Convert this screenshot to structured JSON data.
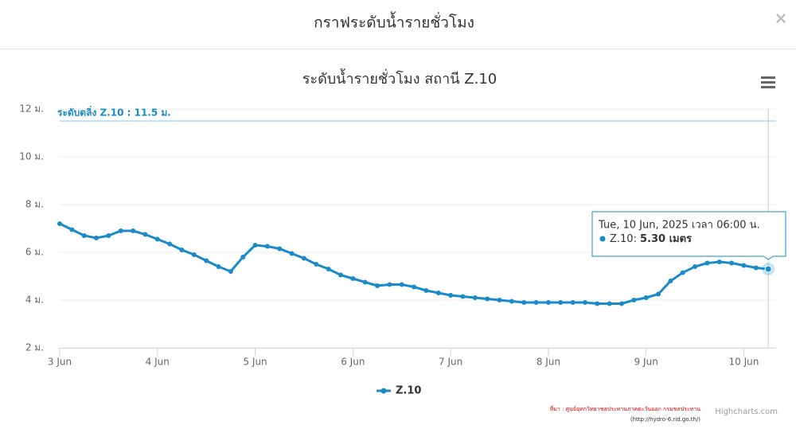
{
  "modal": {
    "title": "กราฟระดับน้ำรายชั่วโมง",
    "close": "×"
  },
  "chart_data": {
    "type": "line",
    "title": "ระดับน้ำรายชั่วโมง สถานี Z.10",
    "x": [
      0,
      0.125,
      0.25,
      0.375,
      0.5,
      0.625,
      0.75,
      0.875,
      1,
      1.125,
      1.25,
      1.375,
      1.5,
      1.625,
      1.75,
      1.875,
      2,
      2.125,
      2.25,
      2.375,
      2.5,
      2.625,
      2.75,
      2.875,
      3,
      3.125,
      3.25,
      3.375,
      3.5,
      3.625,
      3.75,
      3.875,
      4,
      4.125,
      4.25,
      4.375,
      4.5,
      4.625,
      4.75,
      4.875,
      5,
      5.125,
      5.25,
      5.375,
      5.5,
      5.625,
      5.75,
      5.875,
      6,
      6.125,
      6.25,
      6.375,
      6.5,
      6.625,
      6.75,
      6.875,
      7,
      7.125,
      7.25
    ],
    "series": [
      {
        "name": "Z.10",
        "color": "#1a8bc8",
        "values": [
          7.2,
          6.95,
          6.7,
          6.6,
          6.7,
          6.9,
          6.9,
          6.75,
          6.55,
          6.35,
          6.1,
          5.9,
          5.65,
          5.4,
          5.2,
          5.8,
          6.3,
          6.25,
          6.15,
          5.95,
          5.75,
          5.5,
          5.3,
          5.05,
          4.9,
          4.75,
          4.6,
          4.65,
          4.65,
          4.55,
          4.4,
          4.3,
          4.2,
          4.15,
          4.1,
          4.05,
          4.0,
          3.95,
          3.9,
          3.9,
          3.9,
          3.9,
          3.9,
          3.9,
          3.85,
          3.85,
          3.85,
          4.0,
          4.1,
          4.25,
          4.8,
          5.15,
          5.4,
          5.55,
          5.6,
          5.55,
          5.45,
          5.35,
          5.3
        ]
      }
    ],
    "xlim": [
      0,
      7.33
    ],
    "xticks": [
      {
        "value": 0,
        "label": "3 Jun"
      },
      {
        "value": 1,
        "label": "4 Jun"
      },
      {
        "value": 2,
        "label": "5 Jun"
      },
      {
        "value": 3,
        "label": "6 Jun"
      },
      {
        "value": 4,
        "label": "7 Jun"
      },
      {
        "value": 5,
        "label": "8 Jun"
      },
      {
        "value": 6,
        "label": "9 Jun"
      },
      {
        "value": 7,
        "label": "10 Jun"
      }
    ],
    "ylim": [
      2,
      12
    ],
    "yticks": [
      {
        "value": 2,
        "label": "2 ม."
      },
      {
        "value": 4,
        "label": "4 ม."
      },
      {
        "value": 6,
        "label": "6 ม."
      },
      {
        "value": 8,
        "label": "8 ม."
      },
      {
        "value": 10,
        "label": "10 ม."
      },
      {
        "value": 12,
        "label": "12 ม."
      }
    ],
    "grid": true,
    "plot_line": {
      "value": 11.5,
      "label": "ระดับตลิ่ง Z.10 : 11.5 ม."
    },
    "tooltip": {
      "header": "Tue, 10 Jun, 2025 เวลา 06:00 น.",
      "series_label": "Z.10:",
      "value_label": "5.30 เมตร"
    },
    "legend_position": "bottom",
    "credits": "Highcharts.com",
    "source": [
      "ที่มา : ศูนย์อุทกวิทยาชลประทานภาคตะวันออก กรมชลประทาน",
      "(http://hydro-6.rid.go.th/)"
    ]
  }
}
